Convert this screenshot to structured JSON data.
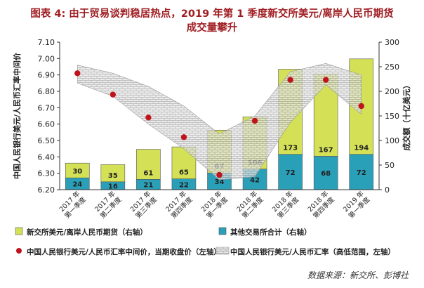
{
  "title_line1": "图表 4:  由于贸易谈判稳居热点，2019 年第 1 季度新交所美元/离岸人民币期货",
  "title_line2": "成交量攀升",
  "source": "数据来源：新交所、彭博社",
  "colors": {
    "title": "#a01e23",
    "sgx_bar": "#d4e157",
    "other_bar": "#2a9fb8",
    "dot": "#c0141c",
    "band_fill": "#dcdcdc",
    "band_stroke": "#9a9a9a"
  },
  "chart_data": {
    "type": "bar",
    "stacked": true,
    "categories": [
      [
        "2017 年",
        "第一季度"
      ],
      [
        "2017 年",
        "第二季度"
      ],
      [
        "2017 年",
        "第三季度"
      ],
      [
        "2017 年",
        "第四季度"
      ],
      [
        "2018 年",
        "第一季度"
      ],
      [
        "2018 年",
        "第二季度"
      ],
      [
        "2018 年",
        "第三季度"
      ],
      [
        "2018 年",
        "第四季度"
      ],
      [
        "2019 年",
        "第一季度"
      ]
    ],
    "series": [
      {
        "name": "其他交易所合计（右轴）",
        "axis": "right",
        "values": [
          24,
          16,
          21,
          22,
          34,
          42,
          72,
          68,
          72
        ]
      },
      {
        "name": "新交所美元/离岸人民币期货（右轴）",
        "axis": "right",
        "values": [
          30,
          35,
          61,
          65,
          87,
          106,
          173,
          167,
          194
        ]
      }
    ],
    "dots": {
      "name": "中国人民银行美元/人民币汇率中间价，当期收盘价（左轴）",
      "axis": "left",
      "values": [
        6.91,
        6.78,
        6.64,
        6.52,
        6.29,
        6.62,
        6.87,
        6.87,
        6.71
      ]
    },
    "band": {
      "name": "中国人民银行美元/人民币汇率（高低范围，左轴）",
      "axis": "left",
      "high": [
        6.96,
        6.91,
        6.83,
        6.71,
        6.54,
        6.65,
        6.92,
        6.97,
        6.9
      ],
      "low": [
        6.85,
        6.77,
        6.6,
        6.45,
        6.26,
        6.28,
        6.61,
        6.84,
        6.66
      ]
    },
    "y_left": {
      "label": "中国人民银行美元/人民币汇率中间价",
      "min": 6.2,
      "max": 7.1,
      "step": 0.1,
      "ticks": [
        "6.20",
        "6.30",
        "6.40",
        "6.50",
        "6.60",
        "6.70",
        "6.80",
        "6.90",
        "7.00",
        "7.10"
      ]
    },
    "y_right": {
      "label": "成交额（十亿美元）",
      "min": 0,
      "max": 300,
      "step": 50,
      "ticks": [
        "0",
        "50",
        "100",
        "150",
        "200",
        "250",
        "300"
      ]
    },
    "legend": [
      {
        "key": "sgx",
        "label": "新交所美元/离岸人民币期货（右轴）"
      },
      {
        "key": "other",
        "label": "其他交易所合计（右轴）"
      },
      {
        "key": "dot",
        "label": "中国人民银行美元/人民币汇率中间价，当期收盘价（左轴）"
      },
      {
        "key": "band",
        "label": "中国人民银行美元/人民币汇率（高低范围，左轴）"
      }
    ]
  }
}
